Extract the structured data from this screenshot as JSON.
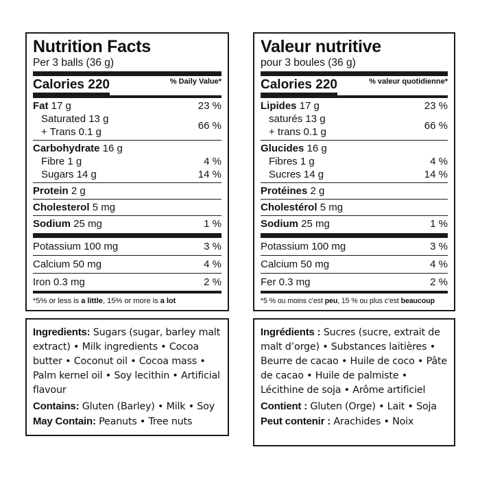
{
  "en": {
    "title": "Nutrition Facts",
    "serving": "Per 3 balls (36 g)",
    "calories": "Calories 220",
    "dv_header": "% Daily Value*",
    "fat_label": "Fat",
    "fat_amount": "17 g",
    "fat_pct": "23 %",
    "saturated": "Saturated 13 g",
    "trans": "+ Trans 0.1 g",
    "sat_trans_pct": "66 %",
    "carb_label": "Carbohydrate",
    "carb_amount": "16 g",
    "fibre": "Fibre 1 g",
    "fibre_pct": "4 %",
    "sugars": "Sugars 14 g",
    "sugars_pct": "14 %",
    "protein_label": "Protein",
    "protein_amount": "2 g",
    "chol_label": "Cholesterol",
    "chol_amount": "5 mg",
    "sodium_label": "Sodium",
    "sodium_amount": "25 mg",
    "sodium_pct": "1 %",
    "potassium": "Potassium 100 mg",
    "potassium_pct": "3 %",
    "calcium": "Calcium 50 mg",
    "calcium_pct": "4 %",
    "iron": "Iron 0.3 mg",
    "iron_pct": "2 %",
    "foot_a": "*5% or less is ",
    "foot_b": "a little",
    "foot_c": ", 15% or more is ",
    "foot_d": "a lot",
    "ing_label": "Ingredients:",
    "ing_text": " Sugars (sugar, barley malt extract) • Milk ingredients • Cocoa butter • Coconut oil • Cocoa mass • Palm kernel oil • Soy lecithin • Artificial flavour",
    "contains_label": "Contains:",
    "contains_text": " Gluten (Barley) • Milk • Soy",
    "may_label": "May Contain:",
    "may_text": " Peanuts • Tree nuts"
  },
  "fr": {
    "title": "Valeur nutritive",
    "serving": "pour 3 boules (36 g)",
    "calories": "Calories 220",
    "dv_header": "% valeur quotidienne*",
    "fat_label": "Lipides",
    "fat_amount": "17 g",
    "fat_pct": "23 %",
    "saturated": "saturés 13 g",
    "trans": "+ trans 0.1 g",
    "sat_trans_pct": "66 %",
    "carb_label": "Glucides",
    "carb_amount": "16 g",
    "fibre": "Fibres 1 g",
    "fibre_pct": "4 %",
    "sugars": "Sucres 14 g",
    "sugars_pct": "14 %",
    "protein_label": "Protéines",
    "protein_amount": "2 g",
    "chol_label": "Cholestérol",
    "chol_amount": "5 mg",
    "sodium_label": "Sodium",
    "sodium_amount": "25 mg",
    "sodium_pct": "1 %",
    "potassium": "Potassium 100 mg",
    "potassium_pct": "3 %",
    "calcium": "Calcium 50 mg",
    "calcium_pct": "4 %",
    "iron": "Fer 0.3 mg",
    "iron_pct": "2 %",
    "foot_a": "*5 % ou moins c'est ",
    "foot_b": "peu",
    "foot_c": ", 15 % ou plus c'est ",
    "foot_d": "beaucoup",
    "ing_label": "Ingrédients :",
    "ing_text": " Sucres (sucre, extrait de malt d’orge) • Substances laitières • Beurre de cacao • Huile de coco • Pâte de cacao • Huile de palmiste • Lécithine de soja • Arôme artificiel",
    "contains_label": "Contient :",
    "contains_text": " Gluten (Orge) • Lait • Soja",
    "may_label": "Peut contenir :",
    "may_text": " Arachides • Noix"
  }
}
